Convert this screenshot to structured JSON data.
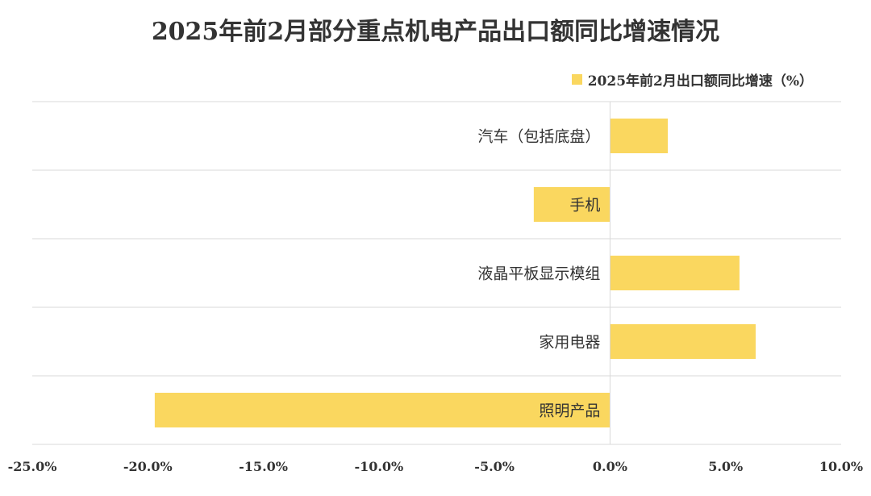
{
  "chart_data": {
    "type": "bar",
    "orientation": "horizontal",
    "title": "2025年前2月部分重点机电产品出口额同比增速情况",
    "categories": [
      "汽车（包括底盘）",
      "手机",
      "液晶平板显示模组",
      "家用电器",
      "照明产品"
    ],
    "series": [
      {
        "name": "2025年前2月出口额同比增速（%）",
        "values": [
          2.5,
          -3.3,
          5.6,
          6.3,
          -19.7
        ]
      }
    ],
    "xlim": [
      -25,
      10
    ],
    "xticks": [
      -25,
      -20,
      -15,
      -10,
      -5,
      0,
      5,
      10
    ],
    "xtick_labels": [
      "-25.0%",
      "-20.0%",
      "-15.0%",
      "-10.0%",
      "-5.0%",
      "0.0%",
      "5.0%",
      "10.0%"
    ],
    "grid": true,
    "legend_position": "top-right",
    "bar_color": "#FAD75F",
    "grid_color": "#D9D9D9"
  }
}
